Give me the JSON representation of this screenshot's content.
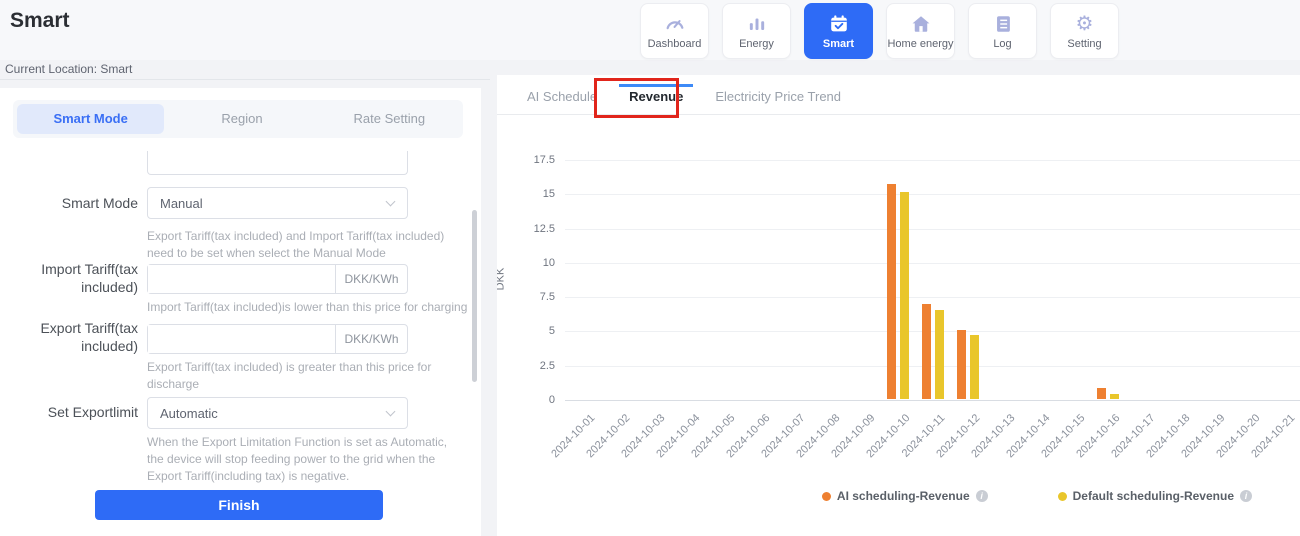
{
  "header": {
    "title": "Smart",
    "nav": {
      "items": [
        {
          "label": "Dashboard",
          "icon": "gauge-icon",
          "active": false
        },
        {
          "label": "Energy",
          "icon": "bar-chart-icon",
          "active": false
        },
        {
          "label": "Smart",
          "icon": "calendar-check-icon",
          "active": true
        },
        {
          "label": "Home energy",
          "icon": "house-icon",
          "active": false
        },
        {
          "label": "Log",
          "icon": "log-book-icon",
          "active": false
        },
        {
          "label": "Setting",
          "icon": "gear-icon",
          "active": false
        }
      ]
    }
  },
  "breadcrumb": "Current Location: Smart",
  "left_panel": {
    "tabs": [
      {
        "label": "Smart Mode",
        "active": true
      },
      {
        "label": "Region",
        "active": false
      },
      {
        "label": "Rate Setting",
        "active": false
      }
    ],
    "form": {
      "smart_mode": {
        "label": "Smart Mode",
        "value": "Manual",
        "helper": "Export Tariff(tax included) and Import Tariff(tax included) need to be set when select the Manual Mode"
      },
      "import_tariff": {
        "label": "Import Tariff(tax included)",
        "value": "",
        "unit": "DKK/KWh",
        "helper": "Import Tariff(tax included)is lower than this price for charging"
      },
      "export_tariff": {
        "label": "Export Tariff(tax included)",
        "value": "",
        "unit": "DKK/KWh",
        "helper": "Export Tariff(tax included) is greater than this price for discharge"
      },
      "export_limit": {
        "label": "Set Exportlimit",
        "value": "Automatic",
        "helper": "When the Export Limitation Function is set as Automatic, the device will stop feeding power to the grid when the Export Tariff(including tax) is negative."
      }
    },
    "finish_label": "Finish"
  },
  "right_panel": {
    "tabs": [
      {
        "label": "AI Schedule",
        "active": false
      },
      {
        "label": "Revenue",
        "active": true
      },
      {
        "label": "Electricity Price Trend",
        "active": false
      }
    ]
  },
  "chart_data": {
    "type": "bar",
    "title": "",
    "xlabel": "",
    "ylabel": "DKK",
    "ylim": [
      0,
      17.5
    ],
    "ytick_step": 2.5,
    "grid": true,
    "legend_position": "bottom-right",
    "categories": [
      "2024-10-01",
      "2024-10-02",
      "2024-10-03",
      "2024-10-04",
      "2024-10-05",
      "2024-10-06",
      "2024-10-07",
      "2024-10-08",
      "2024-10-09",
      "2024-10-10",
      "2024-10-11",
      "2024-10-12",
      "2024-10-13",
      "2024-10-14",
      "2024-10-15",
      "2024-10-16",
      "2024-10-17",
      "2024-10-18",
      "2024-10-19",
      "2024-10-20",
      "2024-10-21"
    ],
    "series": [
      {
        "name": "AI scheduling-Revenue",
        "color": "#ee8031",
        "values": [
          0,
          0,
          0,
          0,
          0,
          0,
          0,
          0,
          0,
          15.7,
          6.9,
          5.0,
          0,
          0,
          0,
          0.8,
          0,
          0,
          0,
          0,
          0
        ]
      },
      {
        "name": "Default scheduling-Revenue",
        "color": "#e9c62b",
        "values": [
          0,
          0,
          0,
          0,
          0,
          0,
          0,
          0,
          0,
          15.1,
          6.5,
          4.7,
          0,
          0,
          0,
          0.4,
          0,
          0,
          0,
          0,
          0
        ]
      }
    ]
  },
  "colors": {
    "accent": "#2e6bf6",
    "tab_indicator": "#3d8af7",
    "annotation_red": "#e1251b",
    "bar_orange": "#ee8031",
    "bar_yellow": "#e9c62b"
  }
}
